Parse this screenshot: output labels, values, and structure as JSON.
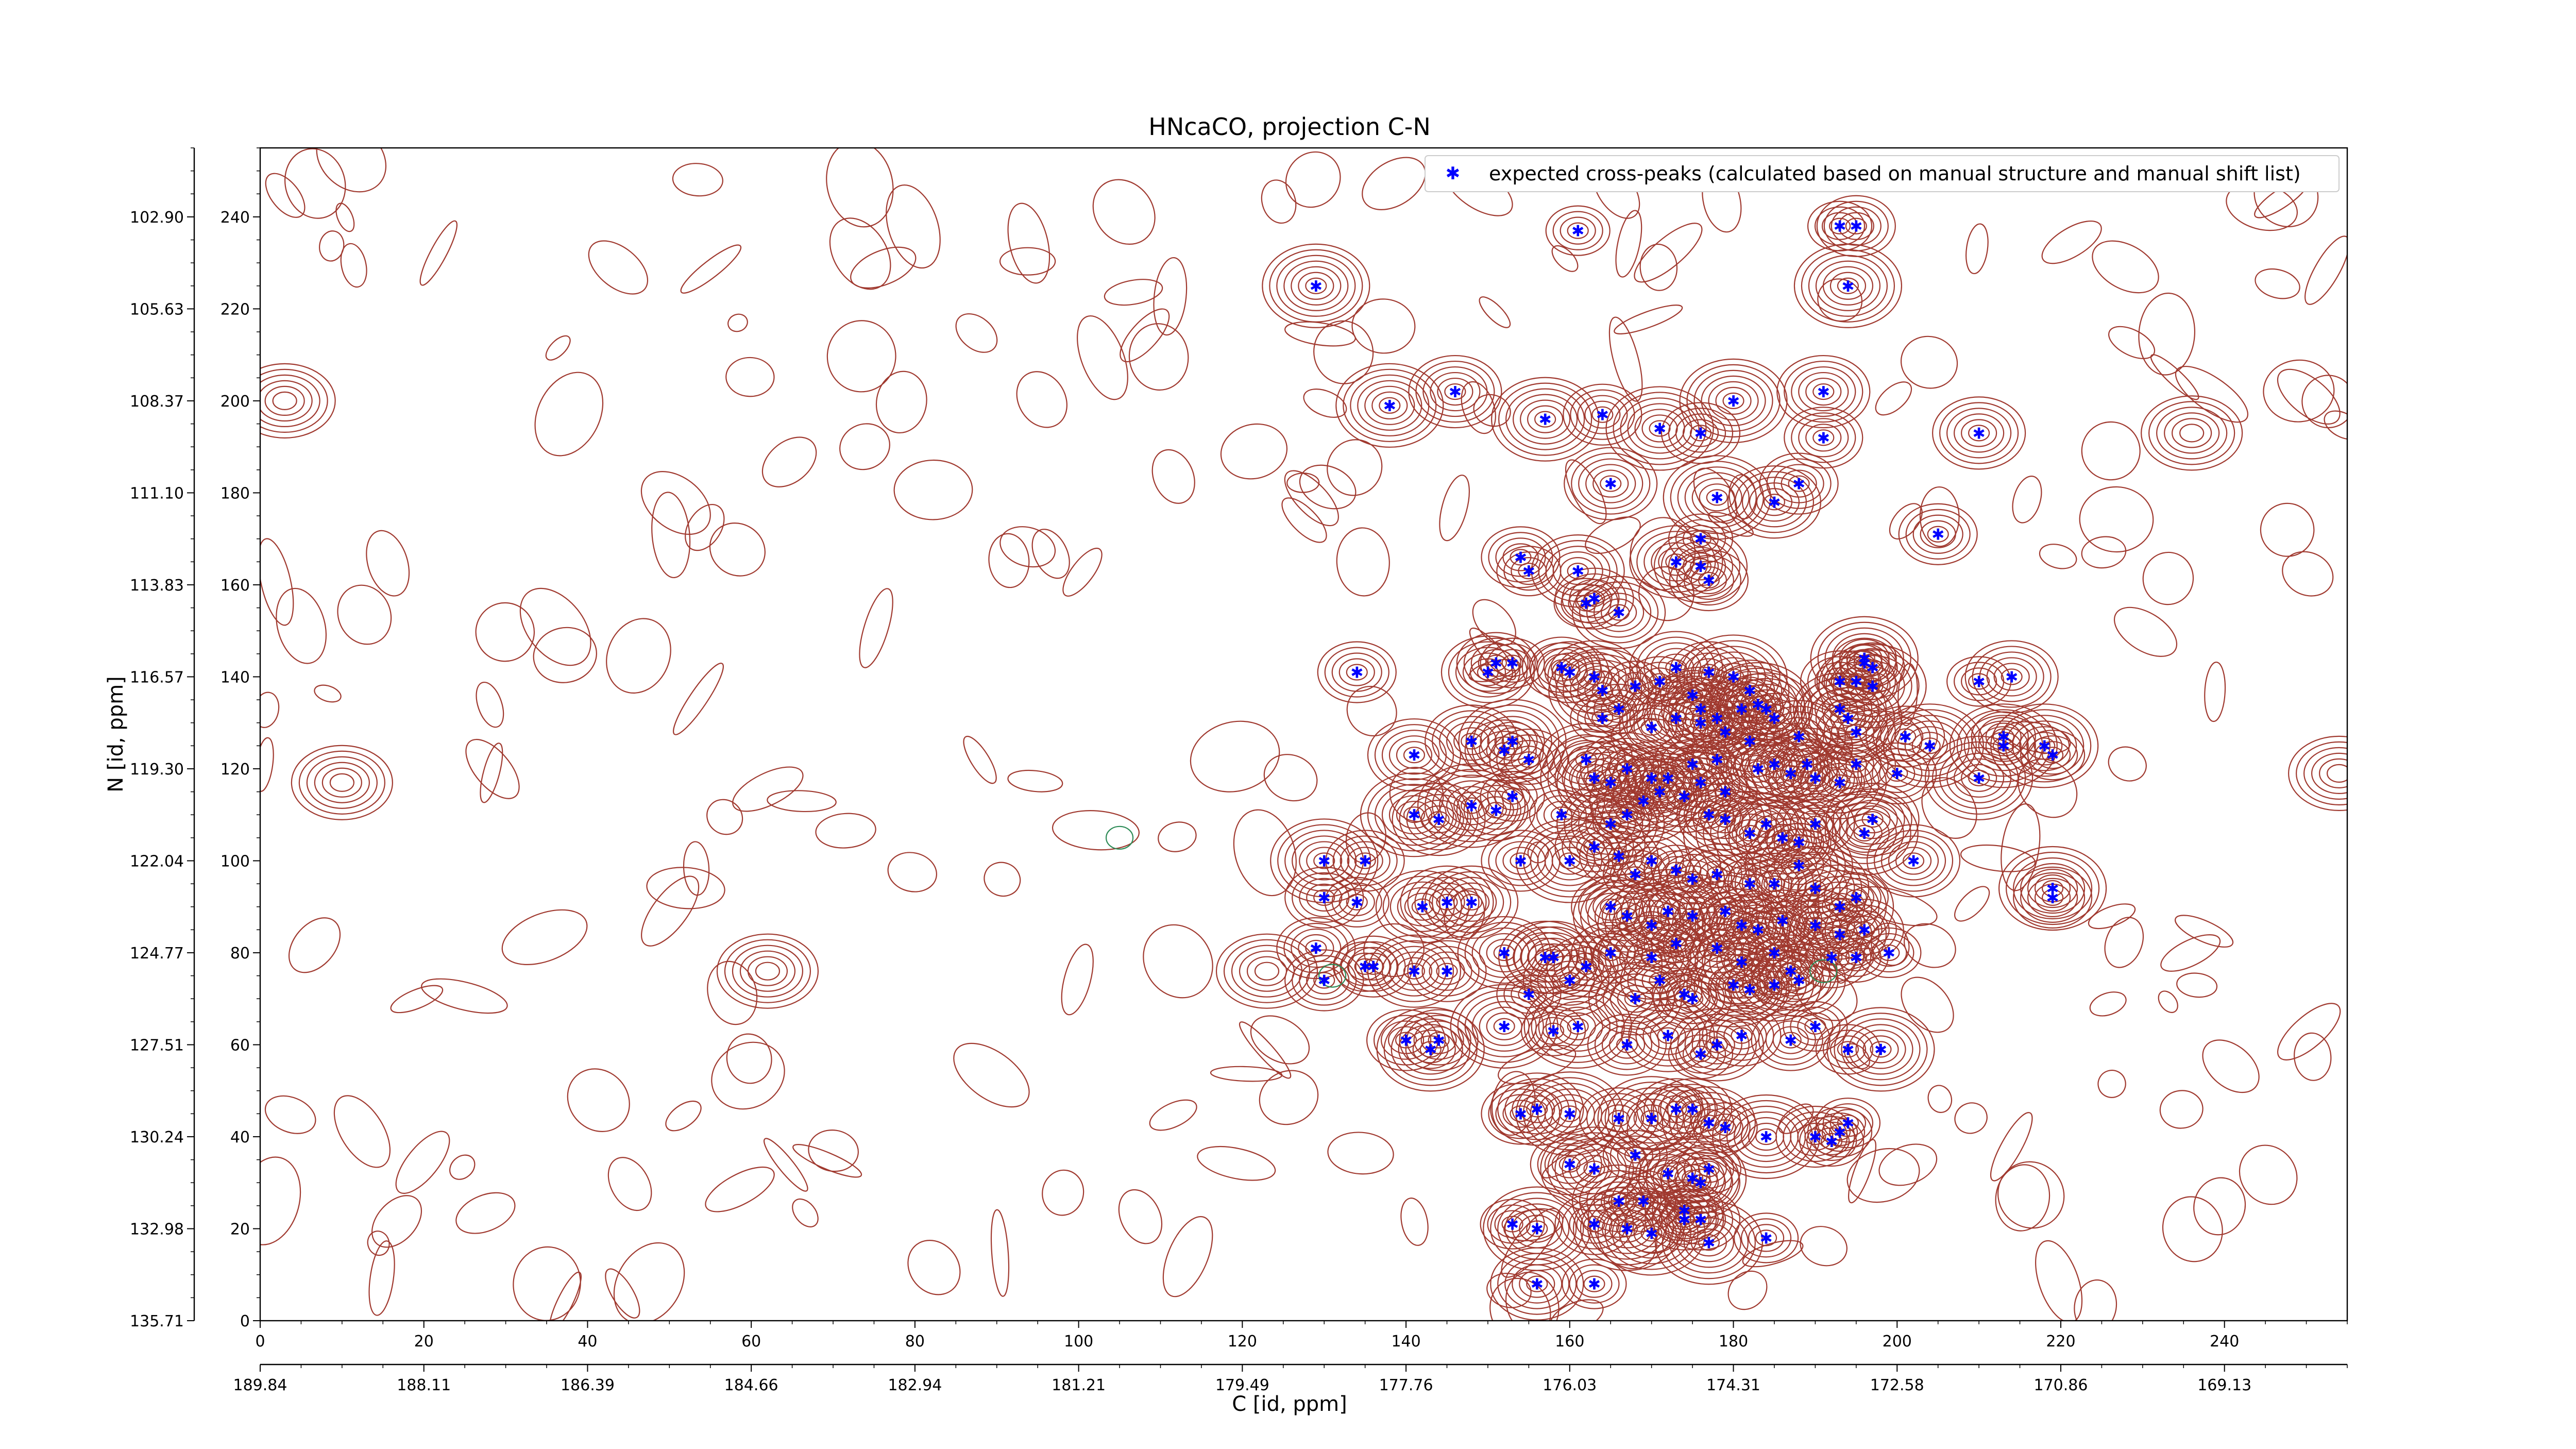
{
  "chart_data": {
    "type": "scatter",
    "title": "HNcaCO, projection C-N",
    "xlabel": "C [id, ppm]",
    "ylabel": "N [id, ppm]",
    "xlim": [
      0,
      255
    ],
    "ylim": [
      0,
      255
    ],
    "x_ticks": [
      0,
      20,
      40,
      60,
      80,
      100,
      120,
      140,
      160,
      180,
      200,
      220,
      240
    ],
    "y_ticks": [
      0,
      20,
      40,
      60,
      80,
      100,
      120,
      140,
      160,
      180,
      200,
      220,
      240
    ],
    "x_ppm_ticks": [
      {
        "v": 0,
        "label": "189.84"
      },
      {
        "v": 20,
        "label": "188.11"
      },
      {
        "v": 40,
        "label": "186.39"
      },
      {
        "v": 60,
        "label": "184.66"
      },
      {
        "v": 80,
        "label": "182.94"
      },
      {
        "v": 100,
        "label": "181.21"
      },
      {
        "v": 120,
        "label": "179.49"
      },
      {
        "v": 140,
        "label": "177.76"
      },
      {
        "v": 160,
        "label": "176.03"
      },
      {
        "v": 180,
        "label": "174.31"
      },
      {
        "v": 200,
        "label": "172.58"
      },
      {
        "v": 220,
        "label": "170.86"
      },
      {
        "v": 240,
        "label": "169.13"
      }
    ],
    "y_ppm_ticks": [
      {
        "v": 0,
        "label": "135.71"
      },
      {
        "v": 20,
        "label": "132.98"
      },
      {
        "v": 40,
        "label": "130.24"
      },
      {
        "v": 60,
        "label": "127.51"
      },
      {
        "v": 80,
        "label": "124.77"
      },
      {
        "v": 100,
        "label": "122.04"
      },
      {
        "v": 120,
        "label": "119.30"
      },
      {
        "v": 140,
        "label": "116.57"
      },
      {
        "v": 160,
        "label": "113.83"
      },
      {
        "v": 180,
        "label": "111.10"
      },
      {
        "v": 200,
        "label": "108.37"
      },
      {
        "v": 220,
        "label": "105.63"
      },
      {
        "v": 240,
        "label": "102.90"
      }
    ],
    "legend": {
      "placement": "top-right",
      "label": "expected cross-peaks (calculated based on manual structure and manual shift list)",
      "marker_color": "#0000ff"
    },
    "colors": {
      "contour": "#a0392f",
      "contour_negative": "#2e8b57",
      "marker": "#0000ff"
    },
    "series": [
      {
        "name": "expected cross-peaks (calculated based on manual structure and manual shift list)",
        "points": [
          [
            129,
            225
          ],
          [
            138,
            199
          ],
          [
            146,
            202
          ],
          [
            161,
            237
          ],
          [
            171,
            194
          ],
          [
            164,
            197
          ],
          [
            176,
            193
          ],
          [
            180,
            200
          ],
          [
            157,
            196
          ],
          [
            165,
            182
          ],
          [
            178,
            179
          ],
          [
            191,
            202
          ],
          [
            185,
            178
          ],
          [
            188,
            182
          ],
          [
            195,
            238
          ],
          [
            194,
            225
          ],
          [
            193,
            238
          ],
          [
            210,
            193
          ],
          [
            176,
            170
          ],
          [
            205,
            171
          ],
          [
            191,
            192
          ],
          [
            163,
            157
          ],
          [
            161,
            163
          ],
          [
            162,
            156
          ],
          [
            176,
            164
          ],
          [
            177,
            161
          ],
          [
            173,
            165
          ],
          [
            154,
            166
          ],
          [
            155,
            163
          ],
          [
            166,
            154
          ],
          [
            134,
            141
          ],
          [
            150,
            141
          ],
          [
            151,
            143
          ],
          [
            153,
            143
          ],
          [
            159,
            142
          ],
          [
            160,
            141
          ],
          [
            163,
            140
          ],
          [
            164,
            137
          ],
          [
            168,
            138
          ],
          [
            171,
            139
          ],
          [
            173,
            142
          ],
          [
            177,
            141
          ],
          [
            180,
            140
          ],
          [
            182,
            137
          ],
          [
            175,
            136
          ],
          [
            176,
            133
          ],
          [
            166,
            133
          ],
          [
            164,
            131
          ],
          [
            173,
            131
          ],
          [
            170,
            129
          ],
          [
            181,
            133
          ],
          [
            183,
            134
          ],
          [
            184,
            133
          ],
          [
            185,
            131
          ],
          [
            178,
            131
          ],
          [
            176,
            130
          ],
          [
            179,
            128
          ],
          [
            182,
            126
          ],
          [
            188,
            127
          ],
          [
            193,
            139
          ],
          [
            195,
            139
          ],
          [
            196,
            143
          ],
          [
            196,
            144
          ],
          [
            197,
            142
          ],
          [
            197,
            138
          ],
          [
            193,
            133
          ],
          [
            194,
            131
          ],
          [
            195,
            128
          ],
          [
            201,
            127
          ],
          [
            210,
            139
          ],
          [
            214,
            140
          ],
          [
            213,
            127
          ],
          [
            218,
            125
          ],
          [
            219,
            123
          ],
          [
            141,
            123
          ],
          [
            148,
            126
          ],
          [
            153,
            126
          ],
          [
            152,
            124
          ],
          [
            155,
            122
          ],
          [
            162,
            122
          ],
          [
            163,
            118
          ],
          [
            165,
            117
          ],
          [
            167,
            120
          ],
          [
            170,
            118
          ],
          [
            172,
            118
          ],
          [
            175,
            121
          ],
          [
            176,
            117
          ],
          [
            178,
            122
          ],
          [
            179,
            115
          ],
          [
            183,
            120
          ],
          [
            185,
            121
          ],
          [
            187,
            119
          ],
          [
            189,
            121
          ],
          [
            190,
            118
          ],
          [
            193,
            117
          ],
          [
            195,
            121
          ],
          [
            200,
            119
          ],
          [
            213,
            125
          ],
          [
            204,
            125
          ],
          [
            210,
            118
          ],
          [
            130,
            100
          ],
          [
            135,
            100
          ],
          [
            141,
            110
          ],
          [
            144,
            109
          ],
          [
            148,
            112
          ],
          [
            151,
            111
          ],
          [
            153,
            114
          ],
          [
            159,
            110
          ],
          [
            165,
            108
          ],
          [
            167,
            110
          ],
          [
            169,
            113
          ],
          [
            171,
            115
          ],
          [
            174,
            114
          ],
          [
            177,
            110
          ],
          [
            179,
            109
          ],
          [
            182,
            106
          ],
          [
            184,
            108
          ],
          [
            186,
            105
          ],
          [
            188,
            104
          ],
          [
            190,
            108
          ],
          [
            196,
            106
          ],
          [
            197,
            109
          ],
          [
            154,
            100
          ],
          [
            160,
            100
          ],
          [
            163,
            103
          ],
          [
            166,
            101
          ],
          [
            168,
            97
          ],
          [
            170,
            100
          ],
          [
            173,
            98
          ],
          [
            175,
            96
          ],
          [
            178,
            97
          ],
          [
            182,
            95
          ],
          [
            185,
            95
          ],
          [
            188,
            99
          ],
          [
            190,
            94
          ],
          [
            193,
            90
          ],
          [
            195,
            92
          ],
          [
            202,
            100
          ],
          [
            219,
            94
          ],
          [
            219,
            92
          ],
          [
            130,
            92
          ],
          [
            134,
            91
          ],
          [
            142,
            90
          ],
          [
            145,
            91
          ],
          [
            148,
            91
          ],
          [
            165,
            90
          ],
          [
            167,
            88
          ],
          [
            170,
            86
          ],
          [
            172,
            89
          ],
          [
            175,
            88
          ],
          [
            179,
            89
          ],
          [
            181,
            86
          ],
          [
            183,
            85
          ],
          [
            186,
            87
          ],
          [
            190,
            86
          ],
          [
            196,
            85
          ],
          [
            193,
            84
          ],
          [
            129,
            81
          ],
          [
            152,
            80
          ],
          [
            157,
            79
          ],
          [
            158,
            79
          ],
          [
            162,
            77
          ],
          [
            165,
            80
          ],
          [
            170,
            79
          ],
          [
            173,
            82
          ],
          [
            178,
            81
          ],
          [
            181,
            78
          ],
          [
            185,
            80
          ],
          [
            187,
            76
          ],
          [
            192,
            79
          ],
          [
            195,
            79
          ],
          [
            199,
            80
          ],
          [
            135,
            77
          ],
          [
            136,
            77
          ],
          [
            130,
            74
          ],
          [
            141,
            76
          ],
          [
            145,
            76
          ],
          [
            155,
            71
          ],
          [
            160,
            74
          ],
          [
            168,
            70
          ],
          [
            171,
            74
          ],
          [
            174,
            71
          ],
          [
            175,
            70
          ],
          [
            180,
            73
          ],
          [
            182,
            72
          ],
          [
            185,
            73
          ],
          [
            188,
            74
          ],
          [
            140,
            61
          ],
          [
            143,
            59
          ],
          [
            144,
            61
          ],
          [
            152,
            64
          ],
          [
            158,
            63
          ],
          [
            161,
            64
          ],
          [
            167,
            60
          ],
          [
            172,
            62
          ],
          [
            176,
            58
          ],
          [
            178,
            60
          ],
          [
            181,
            62
          ],
          [
            187,
            61
          ],
          [
            190,
            64
          ],
          [
            194,
            59
          ],
          [
            198,
            59
          ],
          [
            154,
            45
          ],
          [
            156,
            46
          ],
          [
            160,
            45
          ],
          [
            166,
            44
          ],
          [
            170,
            44
          ],
          [
            173,
            46
          ],
          [
            175,
            46
          ],
          [
            177,
            43
          ],
          [
            179,
            42
          ],
          [
            184,
            40
          ],
          [
            190,
            40
          ],
          [
            192,
            39
          ],
          [
            193,
            41
          ],
          [
            194,
            43
          ],
          [
            160,
            34
          ],
          [
            163,
            33
          ],
          [
            168,
            36
          ],
          [
            172,
            32
          ],
          [
            175,
            31
          ],
          [
            176,
            30
          ],
          [
            177,
            33
          ],
          [
            153,
            21
          ],
          [
            156,
            20
          ],
          [
            163,
            21
          ],
          [
            167,
            20
          ],
          [
            170,
            19
          ],
          [
            174,
            22
          ],
          [
            177,
            17
          ],
          [
            184,
            18
          ],
          [
            166,
            26
          ],
          [
            169,
            26
          ],
          [
            174,
            24
          ],
          [
            176,
            22
          ],
          [
            156,
            8
          ],
          [
            163,
            8
          ]
        ]
      }
    ]
  }
}
